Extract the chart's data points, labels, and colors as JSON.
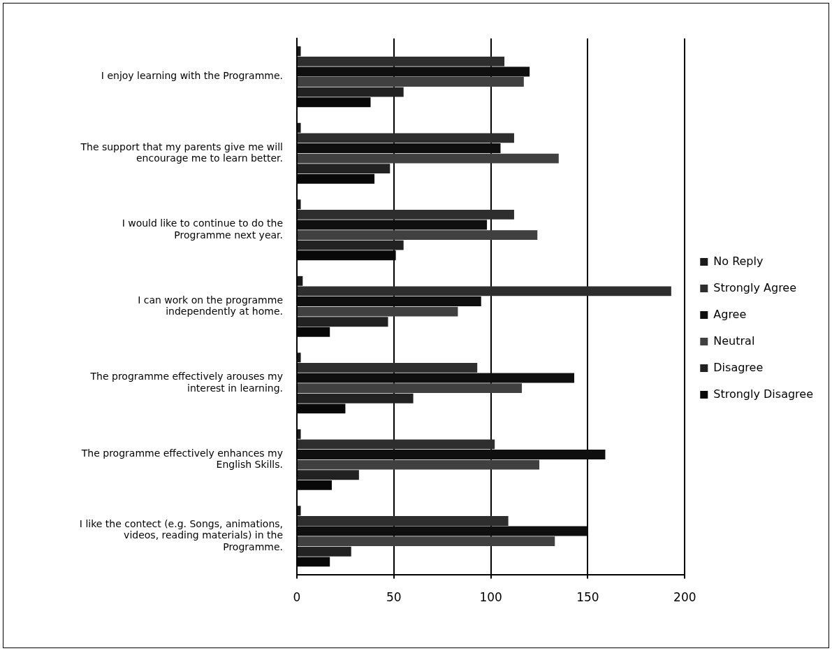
{
  "chart_data": {
    "type": "bar",
    "orientation": "horizontal",
    "categories": [
      "I enjoy learning with the Programme.",
      "The support that my parents give me will encourage me to learn better.",
      "I would like to continue to do the Programme next year.",
      "I can work on the programme independently at home.",
      "The programme effectively arouses my interest in learning.",
      "The programme effectively enhances my English Skills.",
      "I like the contect (e.g. Songs, animations, videos, reading materials) in the Programme."
    ],
    "series": [
      {
        "name": "No Reply",
        "color": "#1a1a1a",
        "values": [
          2,
          2,
          2,
          3,
          2,
          2,
          2
        ]
      },
      {
        "name": "Strongly Agree",
        "color": "#2e2e2e",
        "values": [
          107,
          112,
          112,
          193,
          93,
          102,
          109
        ]
      },
      {
        "name": "Agree",
        "color": "#0f0f0f",
        "values": [
          120,
          105,
          98,
          95,
          143,
          159,
          150
        ]
      },
      {
        "name": "Neutral",
        "color": "#404040",
        "values": [
          117,
          135,
          124,
          83,
          116,
          125,
          133
        ]
      },
      {
        "name": "Disagree",
        "color": "#222222",
        "values": [
          55,
          48,
          55,
          47,
          60,
          32,
          28
        ]
      },
      {
        "name": "Strongly Disagree",
        "color": "#080808",
        "values": [
          38,
          40,
          51,
          17,
          25,
          18,
          17
        ]
      }
    ],
    "xlim": [
      0,
      200
    ],
    "xticks": [
      0,
      50,
      100,
      150,
      200
    ],
    "grid": "x",
    "legend": "right"
  }
}
